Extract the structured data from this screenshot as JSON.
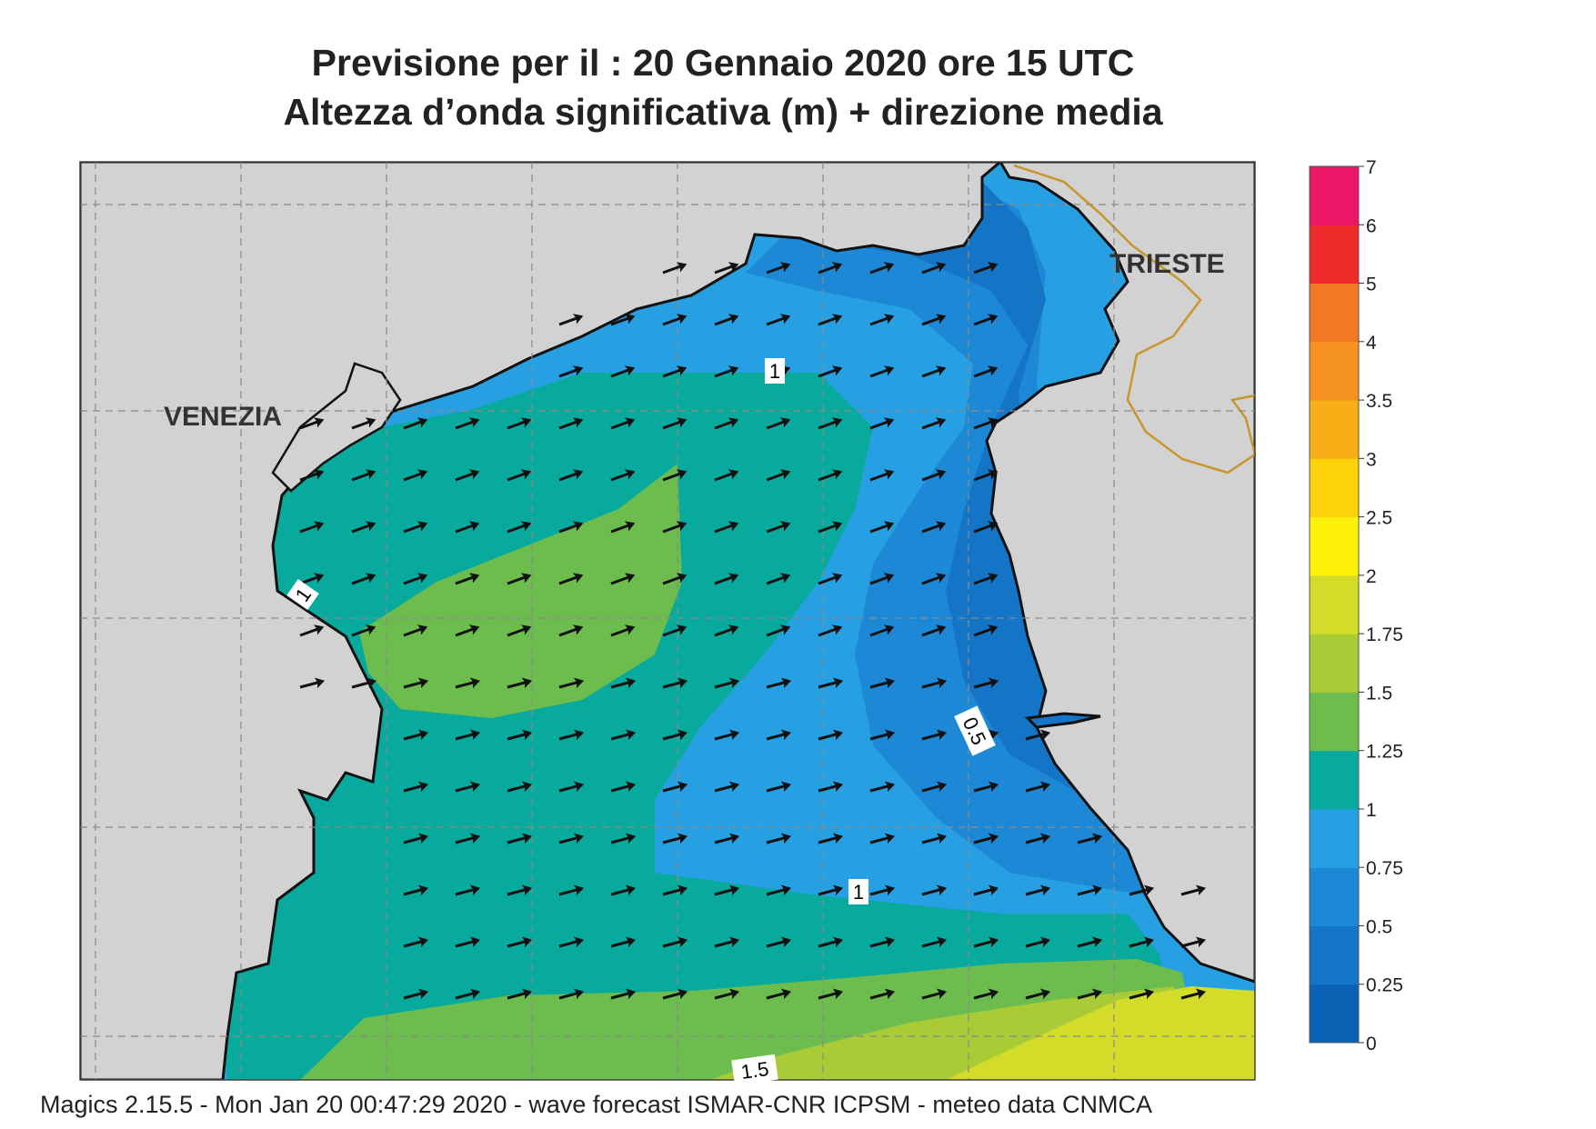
{
  "title": {
    "line1": "Previsione per il  :  20  Gennaio  2020   ore 15 UTC",
    "line2": "Altezza d’onda significativa (m) + direzione media"
  },
  "places": [
    {
      "name": "VENEZIA"
    },
    {
      "name": "TRIESTE"
    }
  ],
  "contour_labels": [
    "1",
    "1",
    "1",
    "0.5",
    "1.5"
  ],
  "legend": {
    "unit": "m",
    "bins": [
      {
        "from": "0",
        "to": "0.25",
        "color": "#0a62b5"
      },
      {
        "from": "0.25",
        "to": "0.5",
        "color": "#1475c6"
      },
      {
        "from": "0.5",
        "to": "0.75",
        "color": "#1d89d6"
      },
      {
        "from": "0.75",
        "to": "1",
        "color": "#26a0e3"
      },
      {
        "from": "1",
        "to": "1.25",
        "color": "#07aa9d"
      },
      {
        "from": "1.25",
        "to": "1.5",
        "color": "#6cbd4e"
      },
      {
        "from": "1.5",
        "to": "1.75",
        "color": "#a8cb36"
      },
      {
        "from": "1.75",
        "to": "2",
        "color": "#d3dc28"
      },
      {
        "from": "2",
        "to": "2.5",
        "color": "#fff20a"
      },
      {
        "from": "2.5",
        "to": "3",
        "color": "#fcd20a"
      },
      {
        "from": "3",
        "to": "3.5",
        "color": "#f8ae16"
      },
      {
        "from": "3.5",
        "to": "4",
        "color": "#f69322"
      },
      {
        "from": "4",
        "to": "5",
        "color": "#f37a25"
      },
      {
        "from": "5",
        "to": "6",
        "color": "#ee2a2a"
      },
      {
        "from": "6",
        "to": "7",
        "color": "#ec1566"
      }
    ],
    "ticks": [
      "0",
      "0.25",
      "0.5",
      "0.75",
      "1",
      "1.25",
      "1.5",
      "1.75",
      "2",
      "2.5",
      "3",
      "3.5",
      "4",
      "5",
      "6",
      "7"
    ]
  },
  "colors": {
    "land": "#d2d2d2",
    "coast": "#111111",
    "arrow": "#111111",
    "border": "#c8962d"
  },
  "footer": "Magics 2.15.5 - Mon Jan 20 00:47:29 2020 - wave forecast  ISMAR-CNR  ICPSM - meteo data   CNMCA"
}
